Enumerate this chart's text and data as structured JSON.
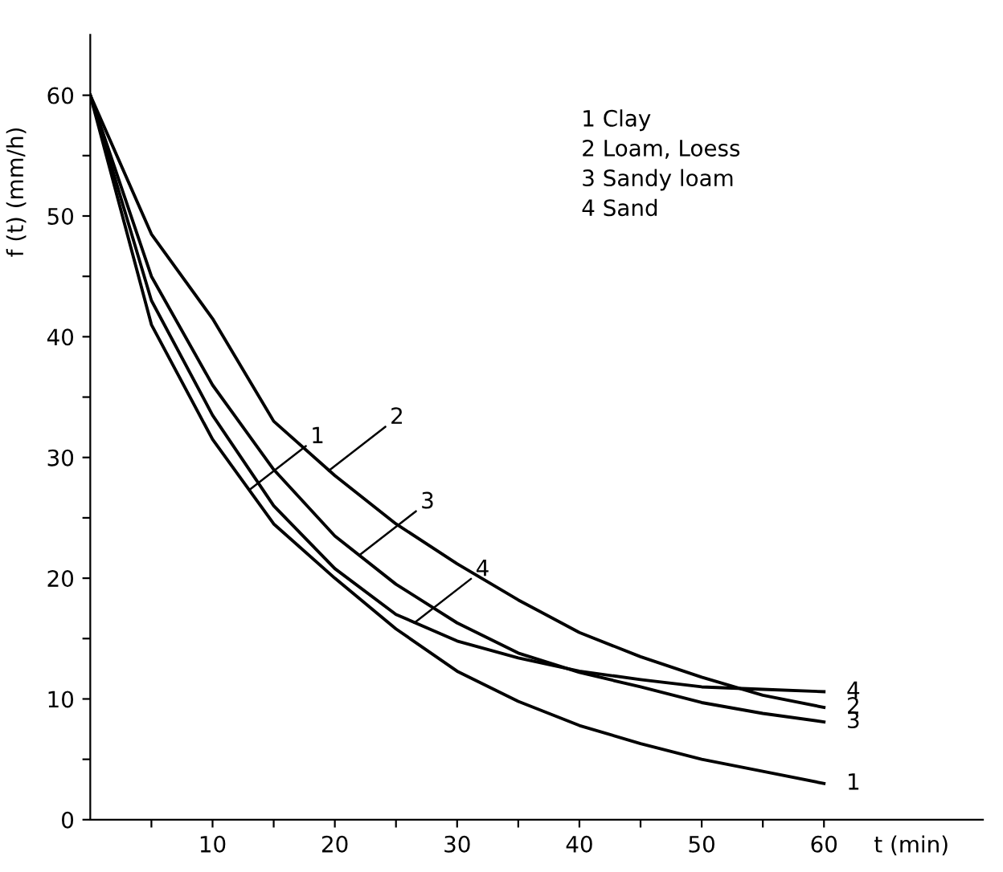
{
  "chart_data": {
    "type": "line",
    "xlabel": "t (min)",
    "ylabel": "f (t) (mm/h)",
    "x": [
      0,
      5,
      10,
      15,
      20,
      25,
      30,
      35,
      40,
      45,
      50,
      55,
      60
    ],
    "series": [
      {
        "color": "#000000",
        "values": [
          60,
          41,
          31.5,
          24.5,
          20,
          15.8,
          12.3,
          9.8,
          7.8,
          6.3,
          5.0,
          4.0,
          3.0
        ]
      },
      {
        "color": "#000000",
        "values": [
          60,
          48.5,
          41.5,
          33,
          28.5,
          24.5,
          21.2,
          18.2,
          15.5,
          13.5,
          11.8,
          10.3,
          9.3
        ]
      },
      {
        "color": "#000000",
        "values": [
          60,
          45,
          36,
          29,
          23.5,
          19.5,
          16.3,
          13.8,
          12.2,
          11.0,
          9.7,
          8.8,
          8.1
        ]
      },
      {
        "color": "#000000",
        "values": [
          60,
          43,
          33.5,
          26,
          20.8,
          17.0,
          14.8,
          13.4,
          12.3,
          11.6,
          11.0,
          10.8,
          10.6
        ]
      }
    ],
    "annotations": [
      "1 Clay",
      "2 Loam, Loess",
      "3 Sandy loam",
      "4 Sand",
      {
        "text": "1",
        "x": 13,
        "y": 27.3
      },
      {
        "text": "2",
        "x": 19.5,
        "y": 28.9
      },
      {
        "text": "3",
        "x": 22,
        "y": 21.9
      },
      {
        "text": "4",
        "x": 26.5,
        "y": 16.3
      },
      {
        "text": "1",
        "x": 60,
        "y": 3.0
      },
      {
        "text": "2",
        "x": 60,
        "y": 9.3
      },
      {
        "text": "3",
        "x": 60,
        "y": 8.1
      },
      {
        "text": "4",
        "x": 60,
        "y": 10.6
      }
    ],
    "xlim": [
      0,
      73
    ],
    "ylim": [
      0,
      65
    ],
    "xticks": [
      {
        "value": 5,
        "label": null
      },
      10,
      {
        "value": 15,
        "label": null
      },
      20,
      {
        "value": 25,
        "label": null
      },
      30,
      {
        "value": 35,
        "label": null
      },
      40,
      {
        "value": 45,
        "label": null
      },
      50,
      {
        "value": 55,
        "label": null
      },
      60
    ],
    "yticks": [
      0,
      {
        "value": 5,
        "label": null
      },
      10,
      {
        "value": 15,
        "label": null
      },
      20,
      {
        "value": 25,
        "label": null
      },
      30,
      {
        "value": 35,
        "label": null
      },
      40,
      {
        "value": 45,
        "label": null
      },
      50,
      {
        "value": 55,
        "label": null
      },
      60
    ],
    "grid": false,
    "marker": "none",
    "line_style": "solid"
  }
}
